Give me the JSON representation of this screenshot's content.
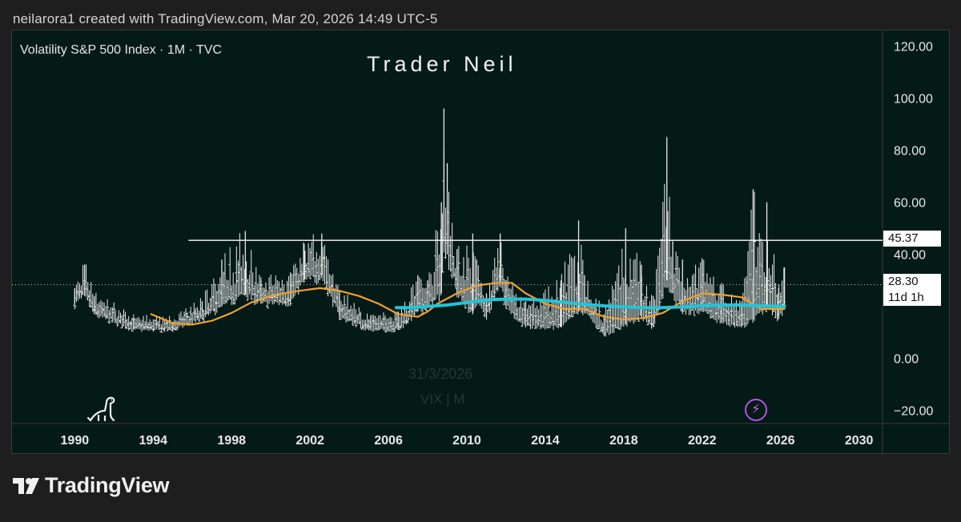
{
  "header": {
    "attribution": "neilarora1 created with TradingView.com, Mar 20, 2026 14:49 UTC-5"
  },
  "legend": {
    "symbol_line": "Volatility S&P 500 Index · 1M · TVC"
  },
  "watermark": {
    "title": "Trader Neil",
    "ghost_date": "31/3/2026",
    "ghost_symbol": "VIX | M"
  },
  "price_tags": {
    "level": "45.37",
    "last": "28.30",
    "countdown": "11d 1h"
  },
  "footer": {
    "brand": "TradingView"
  },
  "icons": {
    "dino": "dinosaur-icon",
    "bolt": "lightning-icon",
    "logo": "tradingview-logo-icon"
  },
  "colors": {
    "background": "#041a17",
    "bars": "#e8e8e8",
    "ma_short": "#f0a030",
    "ma_long": "#22c4d8",
    "level_line": "#ffffff",
    "accent_purple": "#b054e0"
  },
  "chart_data": {
    "type": "line",
    "title": "",
    "xlabel": "",
    "ylabel": "",
    "x_ticks": [
      "1990",
      "1994",
      "1998",
      "2002",
      "2006",
      "2010",
      "2014",
      "2018",
      "2022",
      "2026",
      "2030"
    ],
    "y_ticks": [
      "120.00",
      "100.00",
      "80.00",
      "60.00",
      "40.00",
      "0.00",
      "−20.00"
    ],
    "xlim": [
      1986.8,
      2031.2
    ],
    "ylim": [
      -25,
      126
    ],
    "grid": false,
    "horizontal_level": 45.37,
    "last_value": 28.3,
    "price_ticks": [
      [
        1990.0,
        21,
        27
      ],
      [
        1990.5,
        24,
        36
      ],
      [
        1991.0,
        17,
        24
      ],
      [
        1993.0,
        11,
        15
      ],
      [
        1995.0,
        11,
        14
      ],
      [
        1996.5,
        15,
        22
      ],
      [
        1997.5,
        20,
        38
      ],
      [
        1998.7,
        25,
        49
      ],
      [
        1999.5,
        21,
        30
      ],
      [
        2001.0,
        22,
        33
      ],
      [
        2001.7,
        30,
        44
      ],
      [
        2002.6,
        32,
        48
      ],
      [
        2003.5,
        16,
        26
      ],
      [
        2005.0,
        11,
        15
      ],
      [
        2006.5,
        11,
        18
      ],
      [
        2007.5,
        18,
        32
      ],
      [
        2008.0,
        20,
        30
      ],
      [
        2008.7,
        25,
        60
      ],
      [
        2008.83,
        45,
        96
      ],
      [
        2009.0,
        40,
        75
      ],
      [
        2009.5,
        25,
        42
      ],
      [
        2010.3,
        17,
        48
      ],
      [
        2010.5,
        22,
        38
      ],
      [
        2011.0,
        16,
        25
      ],
      [
        2011.7,
        30,
        48
      ],
      [
        2012.0,
        20,
        30
      ],
      [
        2013.0,
        12,
        22
      ],
      [
        2014.8,
        12,
        30
      ],
      [
        2015.7,
        18,
        53
      ],
      [
        2016.0,
        18,
        32
      ],
      [
        2017.0,
        9,
        17
      ],
      [
        2018.1,
        13,
        50
      ],
      [
        2018.9,
        16,
        36
      ],
      [
        2019.5,
        12,
        24
      ],
      [
        2020.2,
        30,
        85
      ],
      [
        2020.5,
        25,
        45
      ],
      [
        2021.0,
        18,
        38
      ],
      [
        2022.0,
        18,
        38
      ],
      [
        2023.0,
        14,
        28
      ],
      [
        2024.0,
        12,
        20
      ],
      [
        2024.6,
        15,
        65
      ],
      [
        2025.3,
        20,
        60
      ],
      [
        2025.9,
        15,
        27
      ],
      [
        2026.2,
        20,
        35
      ]
    ],
    "series": [
      {
        "color": "#f0a030",
        "points": [
          [
            1993.9,
            17
          ],
          [
            1995.0,
            13.5
          ],
          [
            1996.0,
            13
          ],
          [
            1997.0,
            14.5
          ],
          [
            1998.0,
            17.5
          ],
          [
            1999.0,
            21.5
          ],
          [
            2000.0,
            24
          ],
          [
            2001.0,
            25.5
          ],
          [
            2002.0,
            26.5
          ],
          [
            2002.5,
            27
          ],
          [
            2003.5,
            26
          ],
          [
            2004.5,
            24
          ],
          [
            2005.5,
            21
          ],
          [
            2006.5,
            17
          ],
          [
            2007.5,
            16
          ],
          [
            2008.0,
            18
          ],
          [
            2008.5,
            21
          ],
          [
            2009.5,
            25
          ],
          [
            2010.5,
            28
          ],
          [
            2011.5,
            29
          ],
          [
            2012.3,
            29
          ],
          [
            2013.0,
            25
          ],
          [
            2014.0,
            21
          ],
          [
            2015.0,
            19
          ],
          [
            2016.0,
            19
          ],
          [
            2017.0,
            16
          ],
          [
            2018.0,
            15
          ],
          [
            2019.0,
            15.5
          ],
          [
            2020.0,
            17.5
          ],
          [
            2021.0,
            22
          ],
          [
            2022.0,
            25
          ],
          [
            2023.0,
            24.5
          ],
          [
            2024.0,
            23.5
          ],
          [
            2025.0,
            19
          ],
          [
            2026.2,
            19
          ]
        ]
      },
      {
        "color": "#22c4d8",
        "points": [
          [
            2006.4,
            19.5
          ],
          [
            2007.0,
            19.5
          ],
          [
            2008.0,
            20
          ],
          [
            2009.0,
            20.5
          ],
          [
            2010.0,
            21.5
          ],
          [
            2011.0,
            22.5
          ],
          [
            2012.0,
            22.8
          ],
          [
            2013.0,
            22.8
          ],
          [
            2014.0,
            22.3
          ],
          [
            2015.0,
            21.5
          ],
          [
            2016.0,
            20.8
          ],
          [
            2017.0,
            20.2
          ],
          [
            2018.0,
            19.8
          ],
          [
            2019.0,
            19.5
          ],
          [
            2020.0,
            19.5
          ],
          [
            2021.0,
            19.8
          ],
          [
            2022.0,
            20.3
          ],
          [
            2023.0,
            20.5
          ],
          [
            2024.0,
            20.5
          ],
          [
            2025.0,
            20.2
          ],
          [
            2026.2,
            20
          ]
        ]
      }
    ]
  }
}
